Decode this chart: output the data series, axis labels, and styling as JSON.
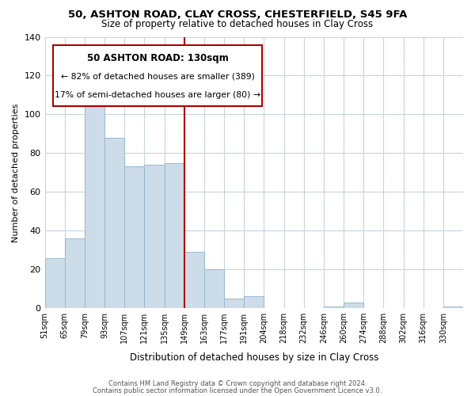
{
  "title": "50, ASHTON ROAD, CLAY CROSS, CHESTERFIELD, S45 9FA",
  "subtitle": "Size of property relative to detached houses in Clay Cross",
  "xlabel": "Distribution of detached houses by size in Clay Cross",
  "ylabel": "Number of detached properties",
  "bar_color": "#ccdce8",
  "bar_edge_color": "#9ab8cc",
  "background_color": "#ffffff",
  "grid_color": "#c8d4dc",
  "annotation_box_color": "#aa0000",
  "annotation_text": [
    "50 ASHTON ROAD: 130sqm",
    "← 82% of detached houses are smaller (389)",
    "17% of semi-detached houses are larger (80) →"
  ],
  "footer": [
    "Contains HM Land Registry data © Crown copyright and database right 2024.",
    "Contains public sector information licensed under the Open Government Licence v3.0."
  ],
  "bins": [
    "51sqm",
    "65sqm",
    "79sqm",
    "93sqm",
    "107sqm",
    "121sqm",
    "135sqm",
    "149sqm",
    "163sqm",
    "177sqm",
    "191sqm",
    "204sqm",
    "218sqm",
    "232sqm",
    "246sqm",
    "260sqm",
    "274sqm",
    "288sqm",
    "302sqm",
    "316sqm",
    "330sqm"
  ],
  "values": [
    26,
    36,
    117,
    88,
    73,
    74,
    75,
    29,
    20,
    5,
    6,
    0,
    0,
    0,
    1,
    3,
    0,
    0,
    0,
    0,
    1
  ],
  "red_line_index": 6,
  "ylim": [
    0,
    140
  ],
  "yticks": [
    0,
    20,
    40,
    60,
    80,
    100,
    120,
    140
  ]
}
